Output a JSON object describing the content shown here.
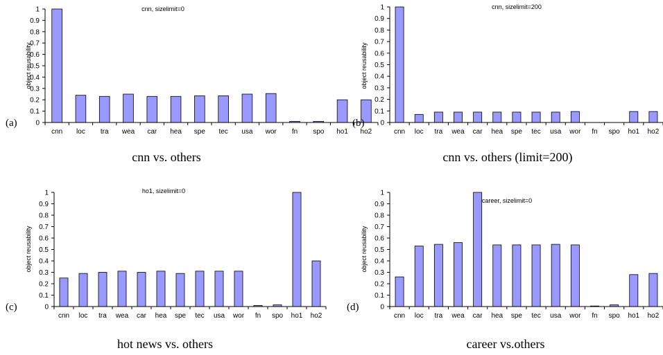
{
  "chart_data": [
    {
      "type": "bar",
      "panel_label": "(a)",
      "title": "cnn, sizelimit=0",
      "ylabel": "object reusability",
      "caption": "cnn vs. others",
      "ylim": [
        0,
        1
      ],
      "yticks": [
        "0",
        "0.1",
        "0.2",
        "0.3",
        "0.4",
        "0.5",
        "0.6",
        "0.7",
        "0.8",
        "0.9",
        "1"
      ],
      "categories": [
        "cnn",
        "loc",
        "tra",
        "wea",
        "car",
        "hea",
        "spe",
        "tec",
        "usa",
        "wor",
        "fn",
        "spo",
        "ho1",
        "ho2"
      ],
      "values": [
        1.0,
        0.24,
        0.23,
        0.25,
        0.23,
        0.23,
        0.235,
        0.235,
        0.25,
        0.255,
        0.01,
        0.01,
        0.2,
        0.2
      ],
      "bar_color": "#9999ff"
    },
    {
      "type": "bar",
      "panel_label": "(b)",
      "title": "cnn, sizelimit=200",
      "ylabel": "object reusability",
      "caption": "cnn vs. others (limit=200)",
      "ylim": [
        0,
        1
      ],
      "yticks": [
        "0",
        "0.1",
        "0.2",
        "0.3",
        "0.4",
        "0.5",
        "0.6",
        "0.7",
        "0.8",
        "0.9",
        "1"
      ],
      "categories": [
        "cnn",
        "loc",
        "tra",
        "wea",
        "car",
        "hea",
        "spe",
        "tec",
        "usa",
        "wor",
        "fn",
        "spo",
        "ho1",
        "ho2"
      ],
      "values": [
        1.0,
        0.07,
        0.09,
        0.09,
        0.09,
        0.09,
        0.09,
        0.09,
        0.09,
        0.095,
        0,
        0,
        0.095,
        0.095
      ],
      "bar_color": "#9999ff"
    },
    {
      "type": "bar",
      "panel_label": "(c)",
      "title": "ho1, sizelimit=0",
      "ylabel": "object reusability",
      "caption": "hot news vs. others",
      "ylim": [
        0,
        1
      ],
      "yticks": [
        "0",
        "0.1",
        "0.2",
        "0.3",
        "0.4",
        "0.5",
        "0.6",
        "0.7",
        "0.8",
        "0.9",
        "1"
      ],
      "categories": [
        "cnn",
        "loc",
        "tra",
        "wea",
        "car",
        "hea",
        "spe",
        "tec",
        "usa",
        "wor",
        "fn",
        "spo",
        "ho1",
        "ho2"
      ],
      "values": [
        0.25,
        0.29,
        0.3,
        0.31,
        0.3,
        0.31,
        0.29,
        0.31,
        0.31,
        0.31,
        0.01,
        0.015,
        1.0,
        0.4
      ],
      "bar_color": "#9999ff"
    },
    {
      "type": "bar",
      "panel_label": "(d)",
      "title": "career, sizelimit=0",
      "ylabel": "object reusability",
      "caption": "career vs.others",
      "ylim": [
        0,
        1
      ],
      "yticks": [
        "0",
        "0.1",
        "0.2",
        "0.3",
        "0.4",
        "0.5",
        "0.6",
        "0.7",
        "0.8",
        "0.9",
        "1"
      ],
      "categories": [
        "cnn",
        "loc",
        "tra",
        "wea",
        "car",
        "hea",
        "spe",
        "tec",
        "usa",
        "wor",
        "fn",
        "spo",
        "ho1",
        "ho2"
      ],
      "values": [
        0.26,
        0.53,
        0.545,
        0.56,
        1.0,
        0.54,
        0.54,
        0.54,
        0.545,
        0.54,
        0.005,
        0.015,
        0.28,
        0.29
      ],
      "bar_color": "#9999ff"
    }
  ]
}
